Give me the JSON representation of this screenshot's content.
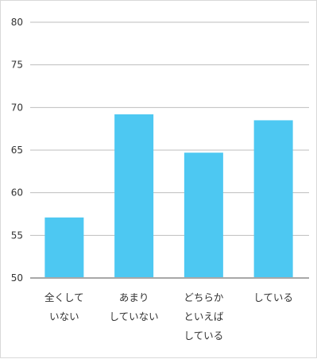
{
  "chart_data": {
    "type": "bar",
    "title": "",
    "xlabel": "",
    "ylabel": "",
    "ylim": [
      50,
      80
    ],
    "yticks": [
      50,
      55,
      60,
      65,
      70,
      75,
      80
    ],
    "grid": true,
    "legend": "none",
    "bar_color": "#4DC8F2",
    "grid_color": "#BEBEBE",
    "categories": [
      [
        "全くして",
        "いない"
      ],
      [
        "あまり",
        "していない"
      ],
      [
        "どちらか",
        "といえば",
        "している"
      ],
      [
        "している"
      ]
    ],
    "values": [
      57.1,
      69.2,
      64.7,
      68.5
    ]
  }
}
